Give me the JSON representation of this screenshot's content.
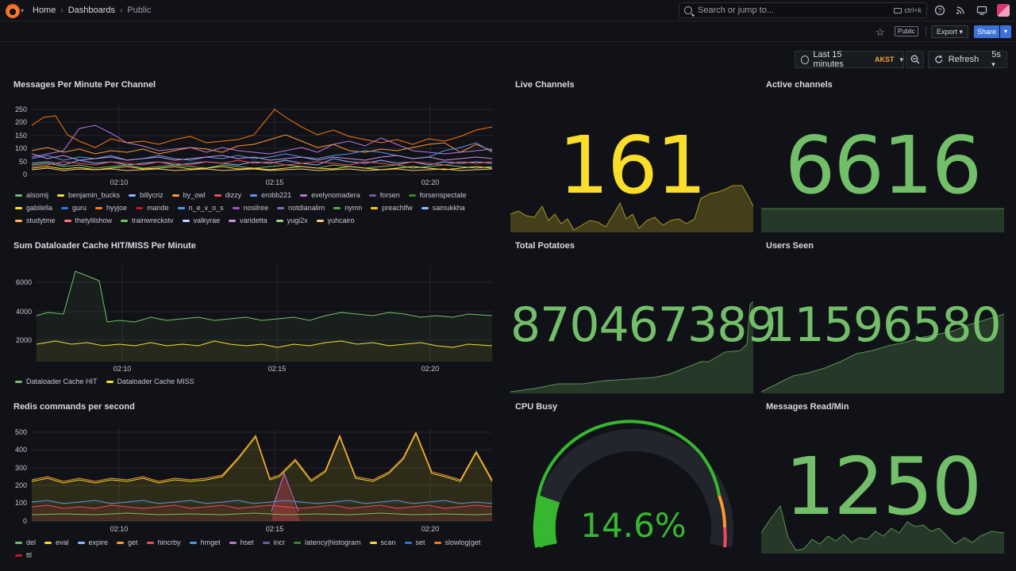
{
  "header": {
    "breadcrumb": [
      "Home",
      "Dashboards",
      "Public"
    ],
    "search_placeholder": "Search or jump to...",
    "search_shortcut": "ctrl+k"
  },
  "toolbar": {
    "public_label": "Public",
    "export_label": "Export",
    "share_label": "Share",
    "time_range": "Last 15 minutes",
    "timezone": "AKST",
    "refresh_label": "Refresh",
    "refresh_interval": "5s"
  },
  "colors": {
    "green": "#73bf69",
    "yellow": "#fade2a",
    "orange": "#ff9830",
    "red": "#f2495c"
  },
  "panels": {
    "messages_per_minute": {
      "title": "Messages Per Minute Per Channel",
      "y_ticks": [
        "250",
        "200",
        "150",
        "100",
        "50",
        "0"
      ],
      "x_ticks": [
        "02:10",
        "02:15",
        "02:20"
      ],
      "legend": [
        {
          "name": "alsomij",
          "color": "#73bf69"
        },
        {
          "name": "benjamin_bucks",
          "color": "#fade2a"
        },
        {
          "name": "billycriz",
          "color": "#8ab8ff"
        },
        {
          "name": "by_owl",
          "color": "#ff9830"
        },
        {
          "name": "dizzy",
          "color": "#f2495c"
        },
        {
          "name": "erobb221",
          "color": "#5794f2"
        },
        {
          "name": "evelynomadera",
          "color": "#b877d9"
        },
        {
          "name": "forsen",
          "color": "#705da0"
        },
        {
          "name": "forsenspectate",
          "color": "#37872d"
        },
        {
          "name": "gabilella",
          "color": "#fade2a"
        },
        {
          "name": "guru",
          "color": "#3274d9"
        },
        {
          "name": "hyyjoe",
          "color": "#ff780a"
        },
        {
          "name": "mande",
          "color": "#c4162a"
        },
        {
          "name": "n_e_v_o_s",
          "color": "#5794f2"
        },
        {
          "name": "nosilree",
          "color": "#a352cc"
        },
        {
          "name": "notdianalim",
          "color": "#806eb7"
        },
        {
          "name": "nymn",
          "color": "#56a64b"
        },
        {
          "name": "preachlfw",
          "color": "#f2cc0c"
        },
        {
          "name": "samukkha",
          "color": "#8ab8ff"
        },
        {
          "name": "studytme",
          "color": "#ffb357"
        },
        {
          "name": "thetylilshow",
          "color": "#ff7383"
        },
        {
          "name": "trainwreckstv",
          "color": "#73bf69"
        },
        {
          "name": "valkyrae",
          "color": "#c0d8ff"
        },
        {
          "name": "varidetta",
          "color": "#ca95e5"
        },
        {
          "name": "yugi2x",
          "color": "#96d98d"
        },
        {
          "name": "yuhcairo",
          "color": "#ffcb7d"
        }
      ]
    },
    "dataloader": {
      "title": "Sum Dataloader Cache HIT/MISS Per Minute",
      "y_ticks": [
        "6000",
        "4000",
        "2000"
      ],
      "x_ticks": [
        "02:10",
        "02:15",
        "02:20"
      ],
      "legend": [
        {
          "name": "Dataloader Cache HIT",
          "color": "#73bf69"
        },
        {
          "name": "Dataloader Cache MISS",
          "color": "#fade2a"
        }
      ]
    },
    "redis": {
      "title": "Redis commands per second",
      "y_ticks": [
        "500",
        "400",
        "300",
        "200",
        "100",
        "0"
      ],
      "x_ticks": [
        "02:10",
        "02:15",
        "02:20"
      ],
      "legend": [
        {
          "name": "del",
          "color": "#73bf69"
        },
        {
          "name": "eval",
          "color": "#fade2a"
        },
        {
          "name": "expire",
          "color": "#8ab8ff"
        },
        {
          "name": "get",
          "color": "#ff9830"
        },
        {
          "name": "hincrby",
          "color": "#f2495c"
        },
        {
          "name": "hmget",
          "color": "#5794f2"
        },
        {
          "name": "hset",
          "color": "#b877d9"
        },
        {
          "name": "incr",
          "color": "#705da0"
        },
        {
          "name": "latency|histogram",
          "color": "#37872d"
        },
        {
          "name": "scan",
          "color": "#fade2a"
        },
        {
          "name": "set",
          "color": "#3274d9"
        },
        {
          "name": "slowlog|get",
          "color": "#ff780a"
        },
        {
          "name": "ttl",
          "color": "#c4162a"
        }
      ]
    },
    "live_channels": {
      "title": "Live Channels",
      "value": "161"
    },
    "active_channels": {
      "title": "Active channels",
      "value": "6616"
    },
    "total_potatoes": {
      "title": "Total Potatoes",
      "value": "870467389"
    },
    "users_seen": {
      "title": "Users Seen",
      "value": "11596580"
    },
    "cpu_busy": {
      "title": "CPU Busy",
      "value": "14.6%",
      "percent": 14.6
    },
    "messages_read": {
      "title": "Messages Read/Min",
      "value": "1250"
    }
  }
}
